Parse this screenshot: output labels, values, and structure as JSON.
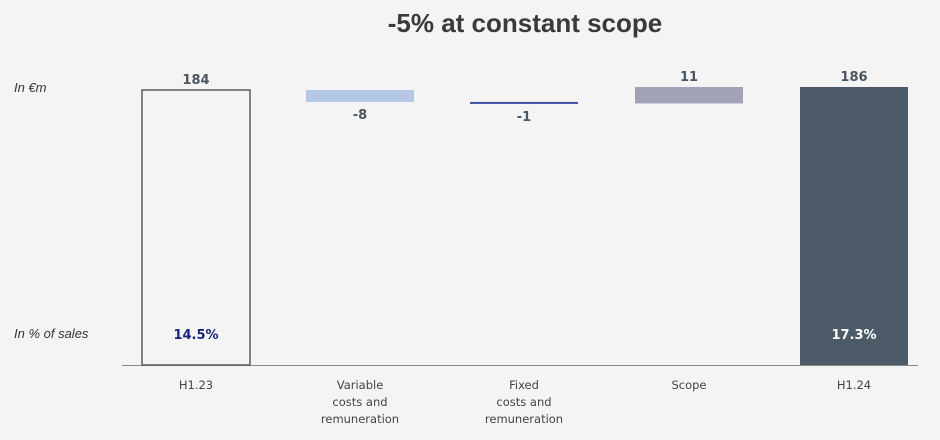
{
  "title": "-5% at constant scope",
  "unit_label": "In €m",
  "pct_row_label": "In % of sales",
  "colors": {
    "background": "#f4f4f4",
    "start_bar_stroke": "#555f69",
    "end_bar_fill": "#4b5a66",
    "variable_fill": "#b4c7e7",
    "fixed_stroke": "#3f51a0",
    "scope_fill": "#a2a2b6",
    "pct_start_color": "#1a237e",
    "pct_end_color": "#ffffff",
    "axis": "#888888"
  },
  "chart_data": {
    "type": "waterfall",
    "title": "-5% at constant scope",
    "unit": "In €m",
    "categories": [
      "H1.23",
      "Variable costs and remuneration",
      "Fixed costs and remuneration",
      "Scope",
      "H1.24"
    ],
    "category_lines": [
      [
        "H1.23"
      ],
      [
        "Variable",
        "costs and",
        "remuneration"
      ],
      [
        "Fixed",
        "costs and",
        "remuneration"
      ],
      [
        "Scope"
      ],
      [
        "H1.24"
      ]
    ],
    "values": [
      184,
      -8,
      -1,
      11,
      186
    ],
    "value_labels": [
      "184",
      "-8",
      "-1",
      "11",
      "186"
    ],
    "kinds": [
      "total",
      "delta",
      "delta",
      "delta",
      "total"
    ],
    "pct_of_sales": [
      "14.5%",
      "",
      "",
      "",
      "17.3%"
    ]
  }
}
